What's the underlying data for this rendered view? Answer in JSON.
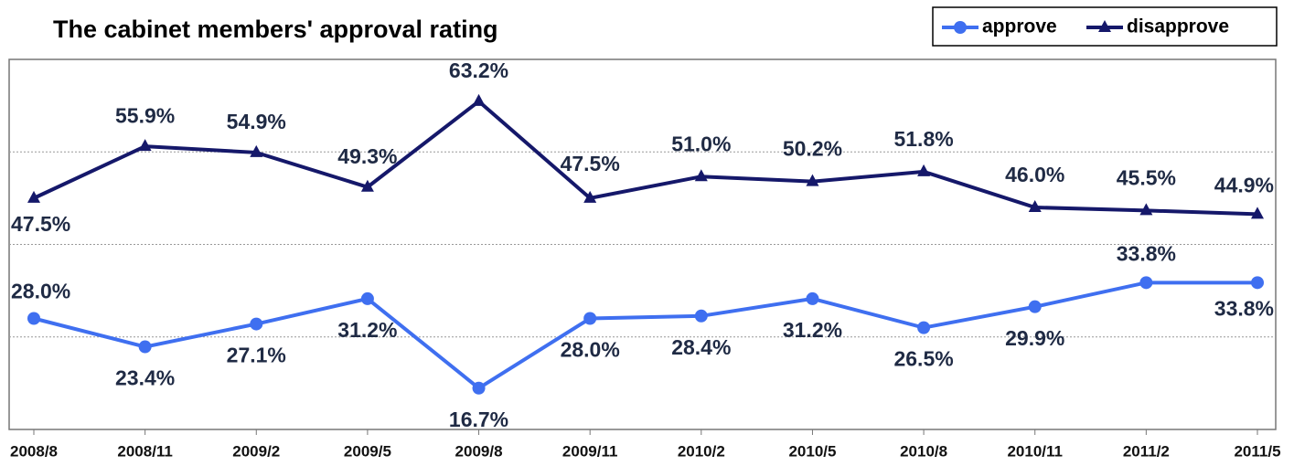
{
  "chart_data": {
    "type": "line",
    "title": "The cabinet members' approval rating",
    "categories": [
      "2008/8",
      "2008/11",
      "2009/2",
      "2009/5",
      "2009/8",
      "2009/11",
      "2010/2",
      "2010/5",
      "2010/8",
      "2010/11",
      "2011/2",
      "2011/5"
    ],
    "series": [
      {
        "name": "approve",
        "color": "#3f6ff0",
        "marker": "circle",
        "values": [
          28.0,
          23.4,
          27.1,
          31.2,
          16.7,
          28.0,
          28.4,
          31.2,
          26.5,
          29.9,
          33.8,
          33.8
        ],
        "value_labels": [
          "28.0%",
          "23.4%",
          "27.1%",
          "31.2%",
          "16.7%",
          "28.0%",
          "28.4%",
          "31.2%",
          "26.5%",
          "29.9%",
          "33.8%",
          "33.8%"
        ]
      },
      {
        "name": "disapprove",
        "color": "#15186a",
        "marker": "triangle",
        "values": [
          47.5,
          55.9,
          54.9,
          49.3,
          63.2,
          47.5,
          51.0,
          50.2,
          51.8,
          46.0,
          45.5,
          44.9
        ],
        "value_labels": [
          "47.5%",
          "55.9%",
          "54.9%",
          "49.3%",
          "63.2%",
          "47.5%",
          "51.0%",
          "50.2%",
          "51.8%",
          "46.0%",
          "45.5%",
          "44.9%"
        ]
      }
    ],
    "ylim": [
      10,
      70
    ],
    "yticks": [
      10,
      25,
      40,
      55,
      70
    ],
    "grid": true,
    "legend": "top-right"
  }
}
